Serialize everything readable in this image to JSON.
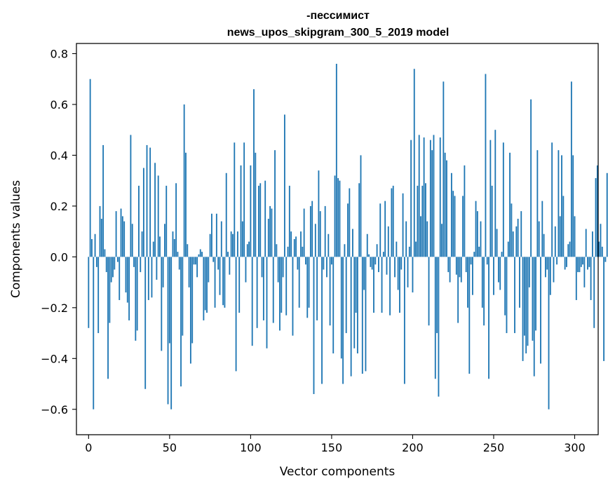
{
  "chart_data": {
    "type": "bar",
    "title": "-пессимист",
    "subtitle": "news_upos_skipgram_300_5_2019 model",
    "xlabel": "Vector components",
    "ylabel": "Components values",
    "xlim": [
      -7.5,
      314.5
    ],
    "ylim": [
      -0.7,
      0.84
    ],
    "x_ticks": [
      0,
      50,
      100,
      150,
      200,
      250,
      300
    ],
    "y_ticks": [
      -0.6,
      -0.4,
      -0.2,
      0.0,
      0.2,
      0.4,
      0.6,
      0.8
    ],
    "x_tick_labels": [
      "0",
      "50",
      "100",
      "150",
      "200",
      "250",
      "300"
    ],
    "y_tick_labels": [
      "−0.6",
      "−0.4",
      "−0.2",
      "0.0",
      "0.2",
      "0.4",
      "0.6",
      "0.8"
    ],
    "bar_color": "#1f77b4",
    "grid": false,
    "values": [
      -0.28,
      0.7,
      0.07,
      -0.6,
      0.09,
      -0.04,
      -0.3,
      0.2,
      0.15,
      0.44,
      0.03,
      -0.06,
      -0.48,
      -0.26,
      -0.1,
      -0.08,
      -0.05,
      0.18,
      -0.02,
      -0.17,
      0.19,
      0.16,
      0.14,
      -0.14,
      -0.18,
      -0.25,
      0.48,
      0.13,
      -0.04,
      -0.33,
      -0.29,
      0.28,
      -0.06,
      0.1,
      0.35,
      -0.52,
      0.44,
      -0.17,
      0.43,
      -0.16,
      0.06,
      0.37,
      -0.09,
      0.32,
      0.08,
      -0.37,
      -0.12,
      0.13,
      0.28,
      -0.58,
      -0.34,
      -0.6,
      0.1,
      0.07,
      0.29,
      0.02,
      -0.05,
      -0.51,
      -0.31,
      0.6,
      0.41,
      0.05,
      -0.12,
      -0.42,
      -0.34,
      -0.03,
      -0.03,
      -0.08,
      0.01,
      0.03,
      0.02,
      -0.25,
      -0.21,
      -0.22,
      -0.1,
      0.09,
      0.17,
      -0.02,
      -0.2,
      0.17,
      -0.05,
      -0.15,
      0.14,
      -0.19,
      -0.2,
      0.33,
      0.02,
      -0.07,
      0.1,
      0.09,
      0.45,
      -0.45,
      0.1,
      -0.22,
      0.36,
      0.14,
      0.45,
      -0.1,
      0.05,
      0.06,
      0.36,
      -0.35,
      0.66,
      0.41,
      -0.28,
      0.28,
      0.29,
      -0.08,
      -0.25,
      0.3,
      -0.36,
      0.15,
      0.2,
      0.19,
      -0.26,
      0.42,
      0.05,
      -0.1,
      -0.29,
      -0.22,
      -0.08,
      0.56,
      -0.23,
      0.04,
      0.28,
      0.1,
      -0.31,
      0.07,
      0.08,
      -0.05,
      -0.2,
      0.1,
      0.04,
      0.19,
      -0.03,
      -0.24,
      -0.2,
      0.2,
      0.22,
      -0.54,
      0.13,
      -0.25,
      0.34,
      0.18,
      -0.5,
      -0.05,
      0.2,
      -0.08,
      0.09,
      -0.27,
      -0.03,
      -0.38,
      0.32,
      0.76,
      0.31,
      0.3,
      -0.4,
      -0.5,
      0.05,
      -0.3,
      0.21,
      0.27,
      -0.47,
      0.11,
      -0.36,
      -0.22,
      -0.38,
      0.29,
      0.4,
      -0.46,
      -0.13,
      -0.45,
      0.09,
      0.01,
      -0.04,
      -0.05,
      -0.22,
      -0.03,
      0.05,
      -0.06,
      0.21,
      -0.22,
      0.02,
      0.22,
      -0.07,
      0.12,
      -0.23,
      0.27,
      0.28,
      -0.08,
      0.06,
      -0.13,
      -0.22,
      -0.05,
      0.25,
      -0.5,
      0.14,
      -0.12,
      0.04,
      0.46,
      -0.14,
      0.74,
      0.06,
      0.28,
      0.48,
      0.16,
      0.28,
      0.47,
      0.29,
      0.14,
      -0.27,
      0.46,
      0.42,
      0.48,
      -0.48,
      -0.3,
      -0.55,
      0.47,
      0.13,
      0.69,
      0.41,
      0.38,
      -0.06,
      -0.1,
      0.33,
      0.26,
      0.24,
      -0.07,
      -0.26,
      -0.08,
      -0.1,
      0.24,
      0.36,
      -0.06,
      -0.2,
      -0.46,
      -0.03,
      -0.15,
      0.02,
      0.22,
      0.18,
      0.04,
      0.14,
      -0.2,
      -0.27,
      0.72,
      -0.03,
      -0.48,
      0.46,
      0.28,
      -0.15,
      0.5,
      0.11,
      -0.1,
      -0.13,
      0.02,
      0.45,
      -0.23,
      -0.3,
      0.06,
      0.41,
      0.21,
      0.1,
      -0.3,
      0.12,
      0.15,
      -0.2,
      0.18,
      -0.41,
      -0.31,
      -0.38,
      -0.35,
      -0.12,
      0.62,
      -0.33,
      -0.47,
      -0.29,
      0.42,
      0.14,
      -0.42,
      0.22,
      0.09,
      -0.08,
      -0.05,
      -0.6,
      -0.15,
      0.45,
      -0.1,
      0.12,
      -0.03,
      0.42,
      0.16,
      0.4,
      0.24,
      -0.05,
      -0.04,
      0.05,
      0.06,
      0.69,
      0.4,
      0.16,
      -0.17,
      -0.06,
      -0.06,
      -0.04,
      -0.03,
      -0.12,
      0.11,
      -0.05,
      -0.04,
      -0.17,
      0.1,
      -0.28,
      0.31,
      0.36,
      0.06,
      0.13,
      0.04,
      -0.41,
      -0.02,
      0.33
    ]
  }
}
